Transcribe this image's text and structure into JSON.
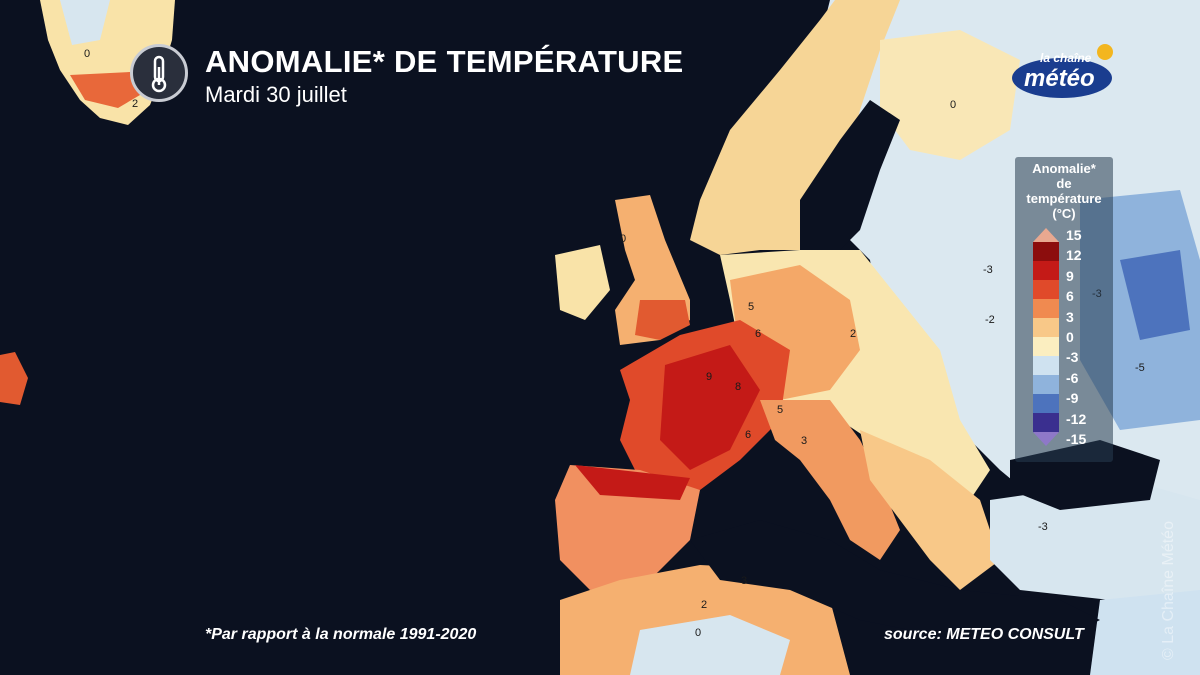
{
  "header": {
    "title": "ANOMALIE* DE TEMPÉRATURE",
    "subtitle": "Mardi 30 juillet"
  },
  "logo": {
    "line1": "la chaîne",
    "line2": "météo"
  },
  "legend": {
    "title_lines": [
      "Anomalie*",
      "de",
      "température",
      "(°C)"
    ],
    "ticks": [
      "15",
      "12",
      "9",
      "6",
      "3",
      "0",
      "-3",
      "-6",
      "-9",
      "-12",
      "-15"
    ],
    "colors": [
      "#e8a890",
      "#8c0d0d",
      "#c41a17",
      "#e04a2a",
      "#f08a50",
      "#f8c888",
      "#fbeec0",
      "#cfe2f0",
      "#8fb3dc",
      "#4d73bd",
      "#3a2f8f",
      "#8e78c8"
    ]
  },
  "footer": {
    "note": "*Par rapport à la normale 1991-2020",
    "source": "source: METEO CONSULT",
    "watermark": "© La Chaîne Météo"
  },
  "map_labels": [
    "0",
    "2",
    "0",
    "0",
    "5",
    "6",
    "9",
    "8",
    "6",
    "5",
    "3",
    "-3",
    "-2",
    "-3",
    "-5",
    "-3",
    "2",
    "3",
    "2",
    "0"
  ]
}
